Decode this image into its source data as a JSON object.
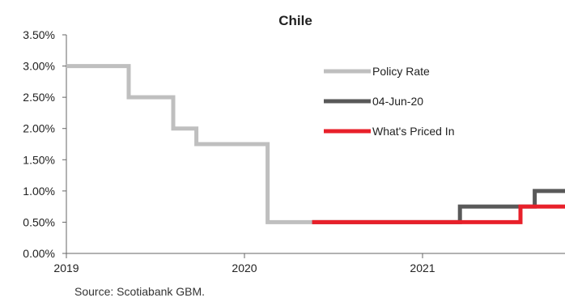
{
  "chart_data": {
    "type": "line",
    "title": "Chile",
    "xlabel": "",
    "ylabel": "",
    "x_ticks": [
      "2019",
      "2020",
      "2021"
    ],
    "xlim": [
      2019.0,
      2021.8
    ],
    "ylim": [
      0,
      3.5
    ],
    "y_ticks": [
      "0.00%",
      "0.50%",
      "1.00%",
      "1.50%",
      "2.00%",
      "2.50%",
      "3.00%",
      "3.50%"
    ],
    "grid": false,
    "legend_position": "top-right",
    "series": [
      {
        "name": "Policy Rate",
        "color": "#bfbfbf",
        "step": true,
        "points": [
          [
            2019.0,
            3.0
          ],
          [
            2019.35,
            2.5
          ],
          [
            2019.6,
            2.0
          ],
          [
            2019.73,
            1.75
          ],
          [
            2020.13,
            0.5
          ],
          [
            2020.38,
            0.5
          ]
        ]
      },
      {
        "name": "04-Jun-20",
        "color": "#595959",
        "step": true,
        "points": [
          [
            2020.38,
            0.5
          ],
          [
            2021.21,
            0.75
          ],
          [
            2021.63,
            1.0
          ],
          [
            2021.8,
            1.0
          ]
        ]
      },
      {
        "name": "What's Priced In",
        "color": "#e8202a",
        "step": true,
        "points": [
          [
            2020.38,
            0.5
          ],
          [
            2021.55,
            0.75
          ],
          [
            2021.8,
            0.75
          ]
        ]
      }
    ]
  },
  "source": "Source: Scotiabank GBM."
}
